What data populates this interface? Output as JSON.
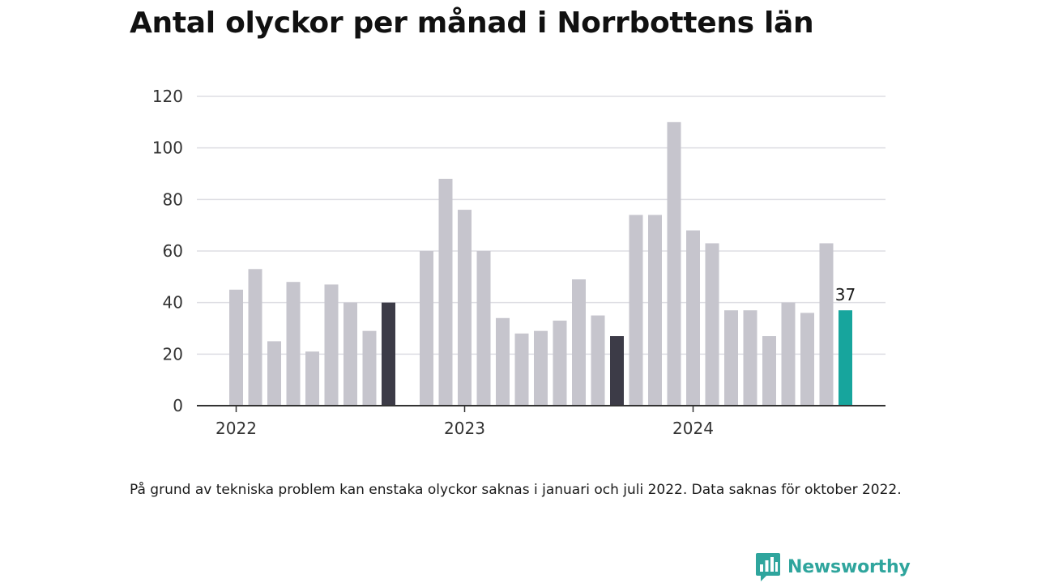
{
  "title": "Antal olyckor per månad i Norrbottens län",
  "footnote": "På grund av tekniska problem kan enstaka olyckor saknas i januari och juli 2022. Data saknas för oktober 2022.",
  "brand": {
    "name": "Newsworthy",
    "icon": "newsworthy-logo-icon",
    "color": "#2fa59d"
  },
  "chart_data": {
    "type": "bar",
    "title": "Antal olyckor per månad i Norrbottens län",
    "xlabel": "",
    "ylabel": "",
    "ylim": [
      0,
      120
    ],
    "yticks": [
      0,
      20,
      40,
      60,
      80,
      100,
      120
    ],
    "grid": true,
    "legend": "none",
    "year_labels": [
      {
        "label": "2022",
        "month": "2022-01"
      },
      {
        "label": "2023",
        "month": "2023-01"
      },
      {
        "label": "2024",
        "month": "2024-01"
      }
    ],
    "colors": {
      "default": "#c6c5cd",
      "highlight_dark": "#3c3b47",
      "latest": "#17a59d",
      "grid": "#dddde3",
      "axis": "#333333"
    },
    "categories": [
      "2022-01",
      "2022-02",
      "2022-03",
      "2022-04",
      "2022-05",
      "2022-06",
      "2022-07",
      "2022-08",
      "2022-09",
      "2022-10",
      "2022-11",
      "2022-12",
      "2023-01",
      "2023-02",
      "2023-03",
      "2023-04",
      "2023-05",
      "2023-06",
      "2023-07",
      "2023-08",
      "2023-09",
      "2023-10",
      "2023-11",
      "2023-12",
      "2024-01",
      "2024-02",
      "2024-03",
      "2024-04",
      "2024-05",
      "2024-06",
      "2024-07",
      "2024-08",
      "2024-09",
      "2024-10"
    ],
    "series": [
      {
        "values": [
          45,
          53,
          25,
          48,
          21,
          47,
          40,
          29,
          40,
          null,
          60,
          88,
          76,
          60,
          34,
          28,
          29,
          33,
          49,
          35,
          27,
          74,
          74,
          110,
          68,
          63,
          37,
          37,
          27,
          40,
          36,
          63,
          37,
          null
        ],
        "highlight": {
          "2022-09": "highlight_dark",
          "2023-09": "highlight_dark",
          "2024-09": "latest"
        }
      }
    ],
    "annotations": [
      {
        "month": "2024-09",
        "text": "37"
      }
    ]
  }
}
